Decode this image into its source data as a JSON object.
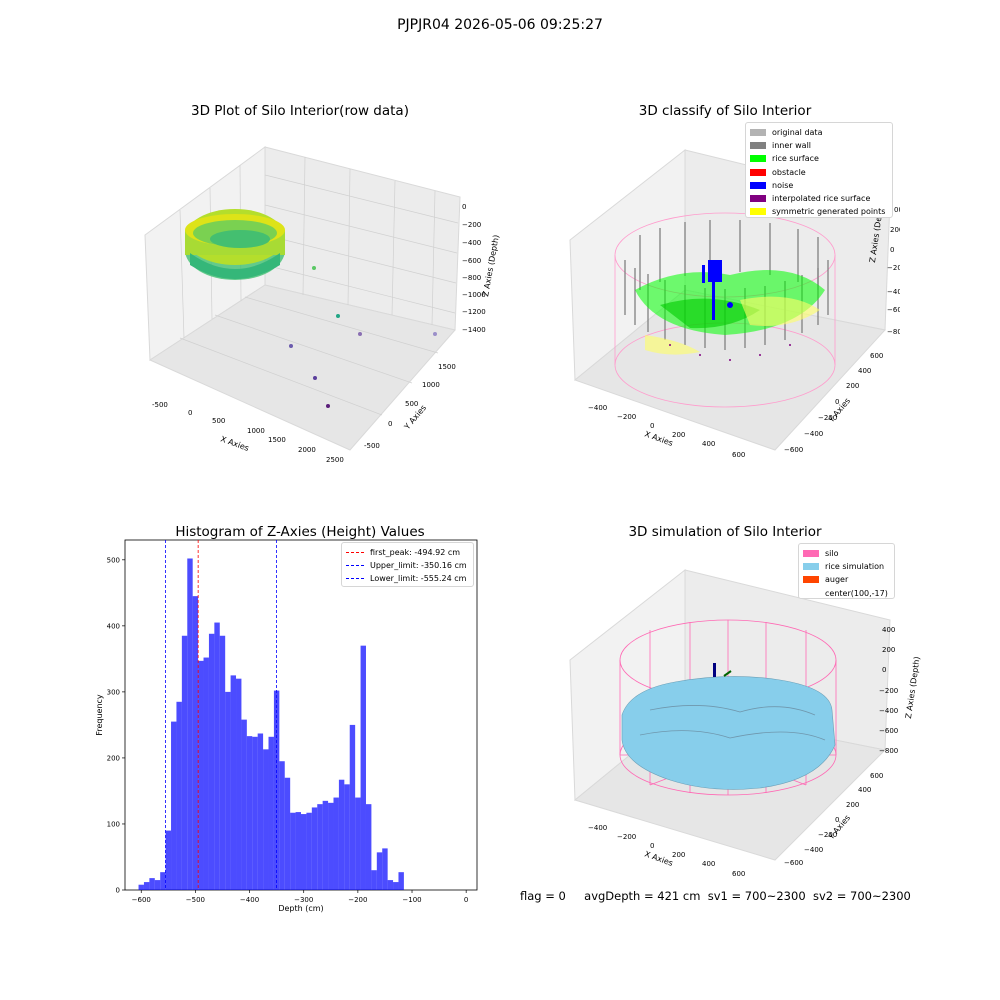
{
  "suptitle": "PJPJR04 2026-05-06 09:25:27",
  "panels": {
    "raw": {
      "title": "3D Plot of Silo Interior(row data)",
      "xlabel": "X Axies",
      "ylabel": "Y Axies",
      "zlabel": "Z Axies (Depth)",
      "xticks": [
        "-500",
        "0",
        "500",
        "1000",
        "1500",
        "2000",
        "2500"
      ],
      "yticks": [
        "-500",
        "0",
        "500",
        "1000",
        "1500"
      ],
      "zticks": [
        "0",
        "−200",
        "−400",
        "−600",
        "−800",
        "−1000",
        "−1200",
        "−1400"
      ]
    },
    "classify": {
      "title": "3D classify of Silo Interior",
      "xlabel": "X Axies",
      "ylabel": "Y Axies",
      "zlabel": "Z Axies (Depth)",
      "xticks": [
        "−400",
        "−200",
        "0",
        "200",
        "400",
        "600"
      ],
      "yticks": [
        "−600",
        "−400",
        "−200",
        "0",
        "200",
        "400",
        "600"
      ],
      "zticks": [
        "200",
        "0",
        "−200",
        "−400",
        "−600",
        "−800"
      ],
      "zticks_top": "00",
      "legend": [
        {
          "label": "original data",
          "color": "#b3b3b3"
        },
        {
          "label": "inner wall",
          "color": "#808080"
        },
        {
          "label": "rice surface",
          "color": "#00ff00"
        },
        {
          "label": "obstacle",
          "color": "#ff0000"
        },
        {
          "label": "noise",
          "color": "#0000ff"
        },
        {
          "label": "interpolated rice surface",
          "color": "#800080"
        },
        {
          "label": "symmetric generated points",
          "color": "#ffff00"
        }
      ]
    },
    "simulation": {
      "title": "3D simulation of Silo Interior",
      "xlabel": "X Axies",
      "ylabel": "Y Axies",
      "zlabel": "Z Axies (Depth)",
      "xticks": [
        "−400",
        "−200",
        "0",
        "200",
        "400",
        "600"
      ],
      "yticks": [
        "−600",
        "−400",
        "−200",
        "0",
        "200",
        "400",
        "600"
      ],
      "zticks": [
        "400",
        "200",
        "0",
        "−200",
        "−400",
        "−600",
        "−800"
      ],
      "legend": [
        {
          "label": "silo",
          "color": "#ff69b4"
        },
        {
          "label": "rice simulation",
          "color": "#87ceeb"
        },
        {
          "label": "auger",
          "color": "#ff4500"
        },
        {
          "label": "center(100,-17)",
          "color": ""
        }
      ]
    }
  },
  "status": {
    "flag": "flag = 0",
    "avg_depth": "avgDepth = 421 cm",
    "sv1": "sv1 = 700~2300",
    "sv2": "sv2 = 700~2300"
  },
  "chart_data": {
    "type": "bar",
    "title": "Histogram of Z-Axies (Height) Values",
    "xlabel": "Depth (cm)",
    "ylabel": "Frequency",
    "xlim": [
      -630,
      20
    ],
    "ylim": [
      0,
      530
    ],
    "xticks": [
      -600,
      -500,
      -400,
      -300,
      -200,
      -100,
      0
    ],
    "xtick_labels": [
      "−600",
      "−500",
      "−400",
      "−300",
      "−200",
      "−100",
      "0"
    ],
    "yticks": [
      0,
      100,
      200,
      300,
      400,
      500
    ],
    "bin_start": -605,
    "bin_width": 10,
    "values": [
      8,
      12,
      18,
      15,
      27,
      90,
      255,
      285,
      385,
      502,
      445,
      347,
      352,
      388,
      405,
      385,
      300,
      325,
      320,
      258,
      233,
      232,
      237,
      213,
      232,
      302,
      195,
      170,
      117,
      118,
      115,
      117,
      125,
      130,
      135,
      132,
      140,
      167,
      160,
      250,
      140,
      370,
      130,
      30,
      57,
      63,
      15,
      12,
      27
    ],
    "color": "#0000ff",
    "lines": [
      {
        "label": "first_peak: -494.92 cm",
        "x": -494.92,
        "color": "#ff0000"
      },
      {
        "label": "Upper_limit: -350.16 cm",
        "x": -350.16,
        "color": "#0000ff"
      },
      {
        "label": "Lower_limit: -555.24 cm",
        "x": -555.24,
        "color": "#0000ff"
      }
    ],
    "legend_position": "top-right"
  }
}
